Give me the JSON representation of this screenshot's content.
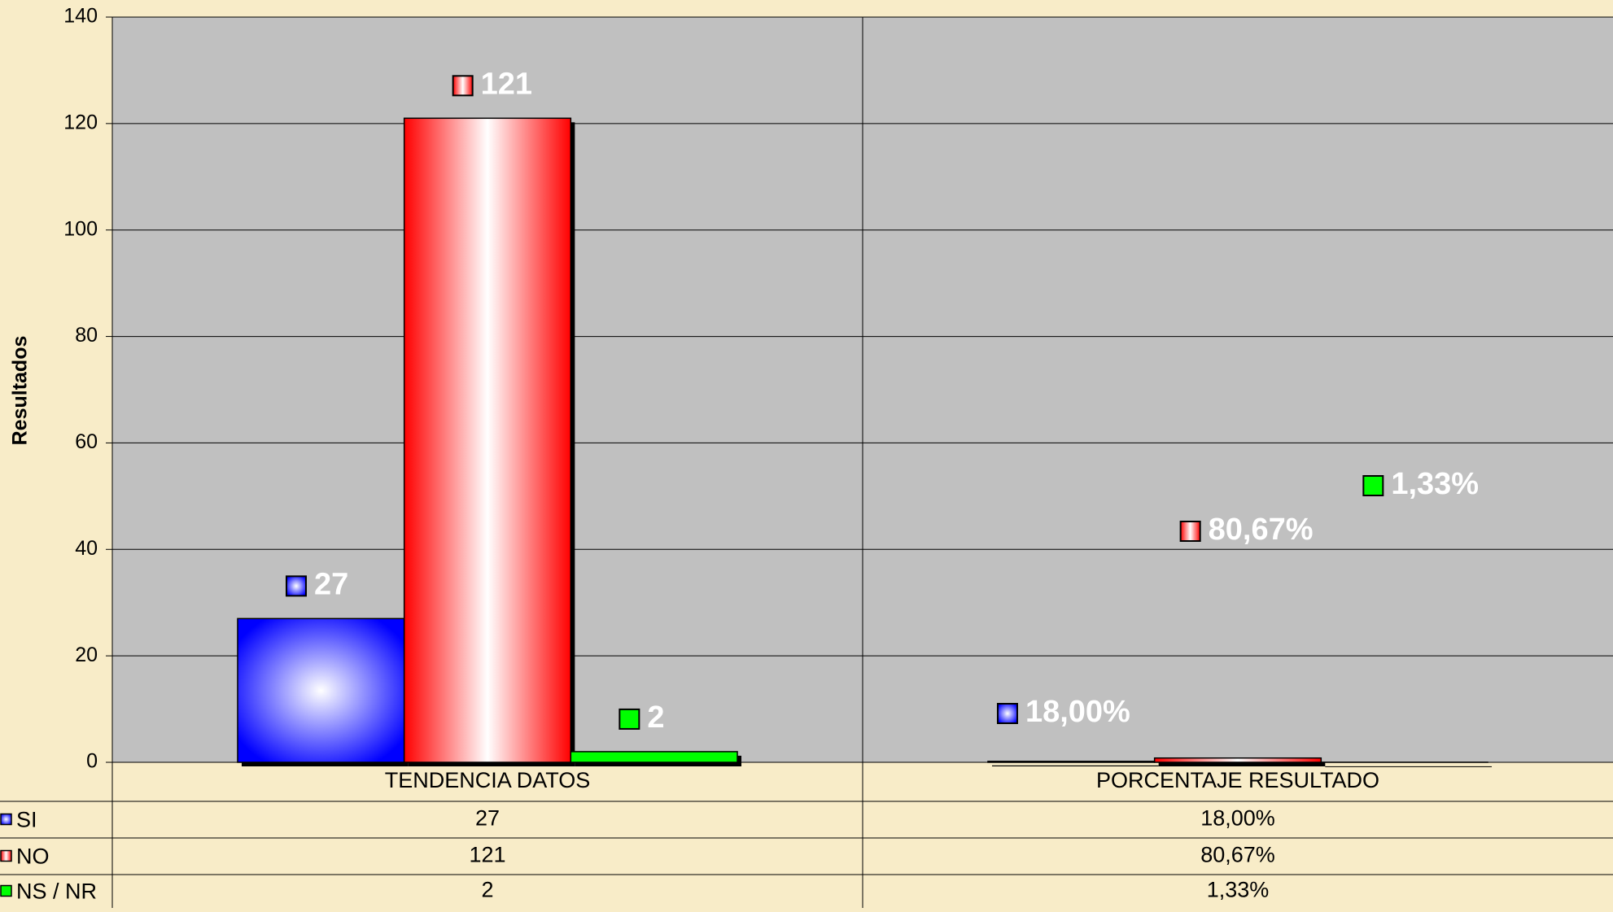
{
  "chart_data": {
    "type": "bar",
    "y_label": "Resultados",
    "categories": [
      "TENDENCIA DATOS",
      "PORCENTAJE RESULTADO"
    ],
    "series": [
      {
        "name": "SI",
        "color": "#0000ff",
        "values": [
          27,
          0.18
        ],
        "value_labels": [
          "27",
          "18,00%"
        ]
      },
      {
        "name": "NO",
        "color": "#ff0000",
        "values": [
          121,
          0.8067
        ],
        "value_labels": [
          "121",
          "80,67%"
        ]
      },
      {
        "name": "NS / NR",
        "color": "#00ff00",
        "values": [
          2,
          0.0133
        ],
        "value_labels": [
          "2",
          "1,33%"
        ]
      }
    ],
    "ylim": [
      0,
      140
    ],
    "yticks": [
      0,
      20,
      40,
      60,
      80,
      100,
      120,
      140
    ],
    "grid": true,
    "data_table": true
  }
}
